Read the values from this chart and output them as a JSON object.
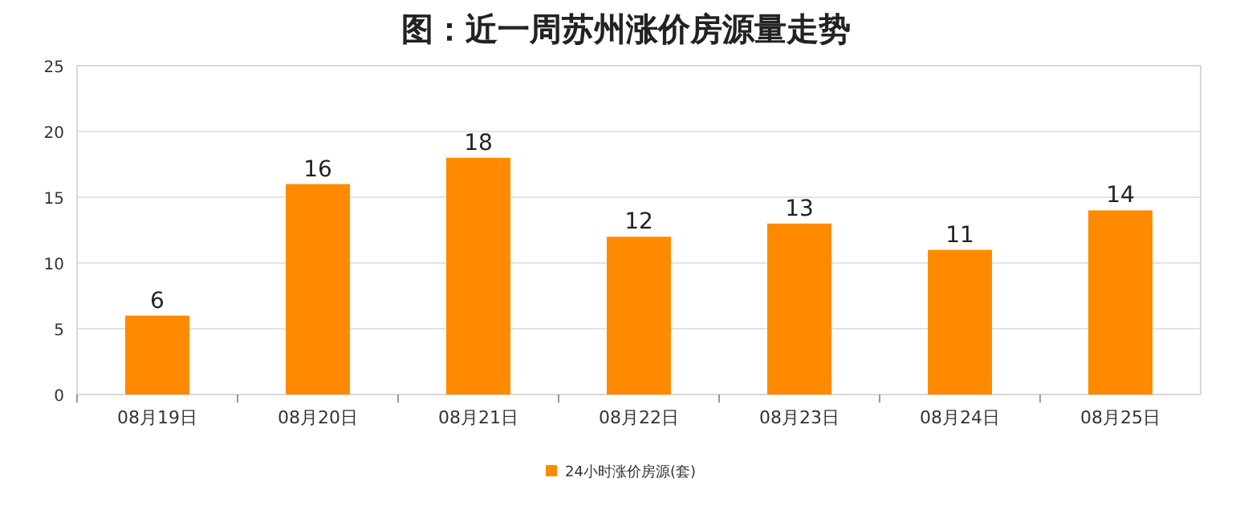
{
  "chart_data": {
    "type": "bar",
    "title": "图：近一周苏州涨价房源量走势",
    "categories": [
      "08月19日",
      "08月20日",
      "08月21日",
      "08月22日",
      "08月23日",
      "08月24日",
      "08月25日"
    ],
    "series": [
      {
        "name": "24小时涨价房源(套)",
        "color": "#ff8a00",
        "values": [
          6,
          16,
          18,
          12,
          13,
          11,
          14
        ]
      }
    ],
    "ylim": [
      0,
      25
    ],
    "yticks": [
      0,
      5,
      10,
      15,
      20,
      25
    ],
    "grid": "y",
    "legend": "bottom",
    "data_labels": true
  }
}
